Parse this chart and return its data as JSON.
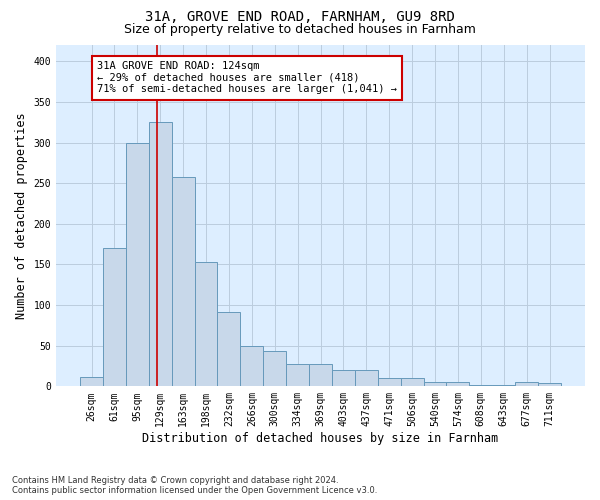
{
  "title_line1": "31A, GROVE END ROAD, FARNHAM, GU9 8RD",
  "title_line2": "Size of property relative to detached houses in Farnham",
  "xlabel": "Distribution of detached houses by size in Farnham",
  "ylabel": "Number of detached properties",
  "footnote": "Contains HM Land Registry data © Crown copyright and database right 2024.\nContains public sector information licensed under the Open Government Licence v3.0.",
  "bar_labels": [
    "26sqm",
    "61sqm",
    "95sqm",
    "129sqm",
    "163sqm",
    "198sqm",
    "232sqm",
    "266sqm",
    "300sqm",
    "334sqm",
    "369sqm",
    "403sqm",
    "437sqm",
    "471sqm",
    "506sqm",
    "540sqm",
    "574sqm",
    "608sqm",
    "643sqm",
    "677sqm",
    "711sqm"
  ],
  "bar_heights": [
    12,
    170,
    300,
    325,
    258,
    153,
    92,
    50,
    44,
    28,
    28,
    20,
    20,
    10,
    10,
    5,
    5,
    2,
    2,
    5,
    4
  ],
  "bar_color": "#c8d8ea",
  "bar_edge_color": "#6699bb",
  "annotation_box_text": "31A GROVE END ROAD: 124sqm\n← 29% of detached houses are smaller (418)\n71% of semi-detached houses are larger (1,041) →",
  "annotation_box_color": "#ffffff",
  "annotation_box_edge_color": "#cc0000",
  "ylim": [
    0,
    420
  ],
  "yticks": [
    0,
    50,
    100,
    150,
    200,
    250,
    300,
    350,
    400
  ],
  "grid_color": "#bbccdd",
  "plot_bg_color": "#ddeeff",
  "title_fontsize": 10,
  "subtitle_fontsize": 9,
  "axis_label_fontsize": 8.5,
  "tick_fontsize": 7,
  "annotation_fontsize": 7.5,
  "footnote_fontsize": 6
}
